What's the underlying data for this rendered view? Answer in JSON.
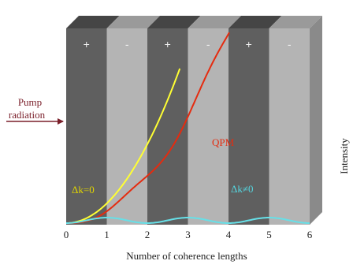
{
  "domain_note": "",
  "pump": {
    "line1": "Pump",
    "line2": "radiation",
    "color": "#7a1f2a"
  },
  "domains": [
    {
      "sign": "+",
      "shade": "dark"
    },
    {
      "sign": "-",
      "shade": "light"
    },
    {
      "sign": "+",
      "shade": "dark"
    },
    {
      "sign": "-",
      "shade": "light"
    },
    {
      "sign": "+",
      "shade": "dark"
    },
    {
      "sign": "-",
      "shade": "light"
    }
  ],
  "colors": {
    "dark": "#5f5f5f",
    "dark_top": "#454545",
    "light": "#b4b4b4",
    "light_top": "#9a9a9a",
    "side": "#8a8a8a",
    "yellow": "#ffff33",
    "qpm": "#e52b0f",
    "cyan": "#66e0e8"
  },
  "labels": {
    "dk0": "Δk=0",
    "qpm": "QPM",
    "dkne0": "Δk≠0",
    "xlabel": "Number of coherence lengths",
    "ylabel": "Intensity"
  },
  "ticks": [
    "0",
    "1",
    "2",
    "3",
    "4",
    "5",
    "6"
  ]
}
